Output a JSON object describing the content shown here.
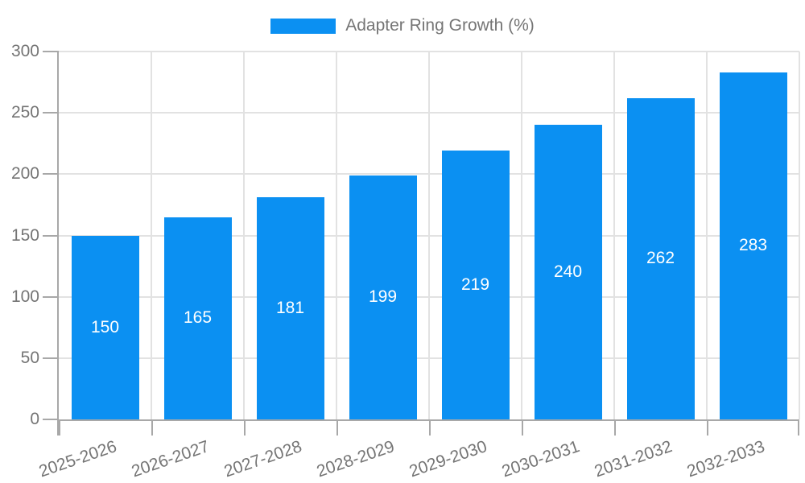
{
  "chart_data": {
    "type": "bar",
    "title": "",
    "legend": {
      "label": "Adapter Ring Growth (%)",
      "position": "top"
    },
    "categories": [
      "2025-2026",
      "2026-2027",
      "2027-2028",
      "2028-2029",
      "2029-2030",
      "2030-2031",
      "2031-2032",
      "2032-2033"
    ],
    "values": [
      150,
      165,
      181,
      199,
      219,
      240,
      262,
      283
    ],
    "xlabel": "",
    "ylabel": "",
    "ylim": [
      0,
      300
    ],
    "yticks": [
      0,
      50,
      100,
      150,
      200,
      250,
      300
    ],
    "grid": true,
    "bar_color": "#0b90f2",
    "value_label_color": "#ffffff",
    "axis_text_color": "#757575",
    "gridline_color": "#e2e2e2",
    "axis_line_color": "#a8a8a8"
  }
}
